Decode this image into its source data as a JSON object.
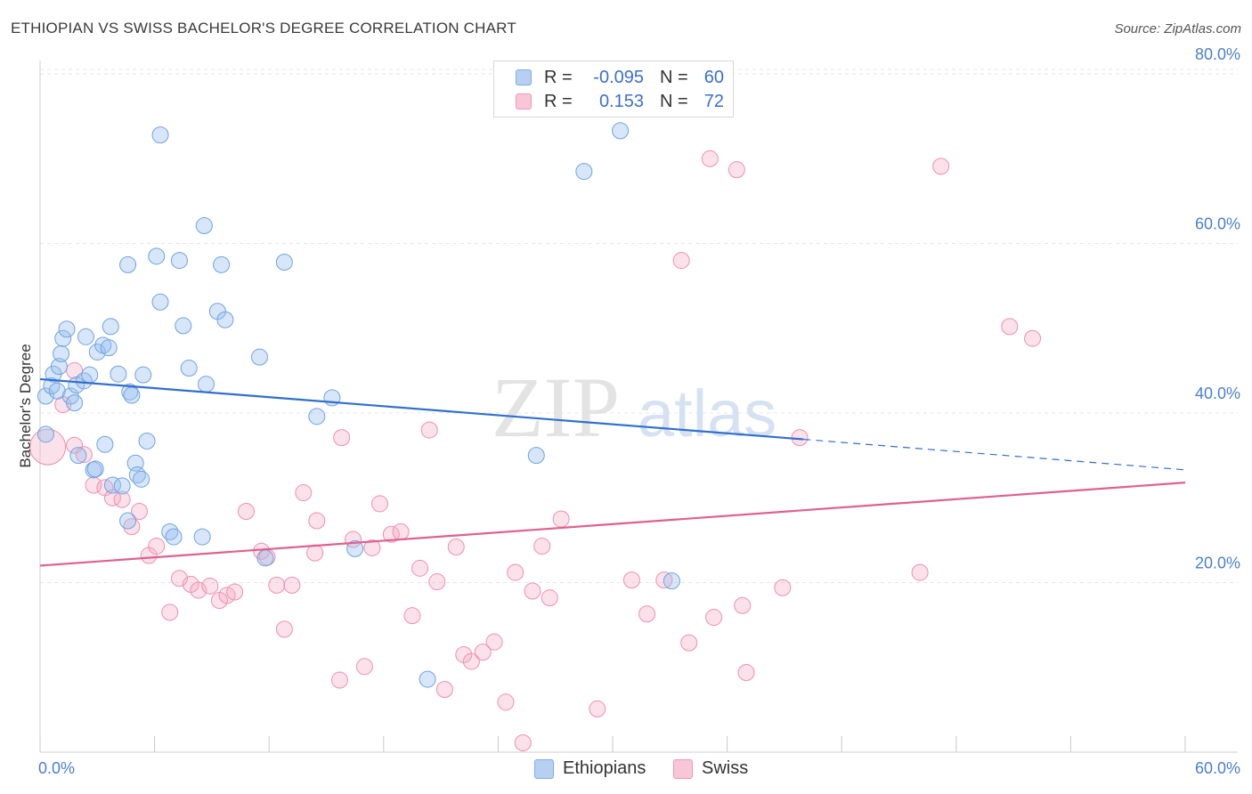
{
  "header": {
    "title": "ETHIOPIAN VS SWISS BACHELOR'S DEGREE CORRELATION CHART",
    "source": "Source: ZipAtlas.com"
  },
  "legend_top": {
    "rows": [
      {
        "r_label": "R =",
        "r_value": "-0.095",
        "n_label": "N =",
        "n_value": "60"
      },
      {
        "r_label": "R =",
        "r_value": "0.153",
        "n_label": "N =",
        "n_value": "72"
      }
    ]
  },
  "legend_bottom": {
    "items": [
      {
        "label": "Ethiopians"
      },
      {
        "label": "Swiss"
      }
    ]
  },
  "chart_data": {
    "type": "scatter",
    "title": "ETHIOPIAN VS SWISS BACHELOR'S DEGREE CORRELATION CHART",
    "xlabel": "",
    "ylabel": "Bachelor's Degree",
    "xlim": [
      0,
      60
    ],
    "ylim": [
      0,
      82
    ],
    "x_tick_labels": [
      "0.0%",
      "60.0%"
    ],
    "y_ticks": [
      20,
      40,
      60,
      80
    ],
    "y_tick_labels": [
      "20.0%",
      "40.0%",
      "60.0%",
      "80.0%"
    ],
    "grid": true,
    "watermark": "ZIPatlas",
    "colors": {
      "ethiopians": "#6fa3e0",
      "swiss": "#ef8fb0",
      "eth_line": "#2f6fd0",
      "swiss_line": "#e0608c"
    },
    "series": [
      {
        "name": "Ethiopians",
        "r": -0.095,
        "n": 60,
        "trend": {
          "x0": 0,
          "y0": 44.0,
          "x1": 40,
          "y1": 36.9,
          "dash_to_x": 60,
          "dash_to_y": 33.3
        },
        "points": [
          [
            0.3,
            42.0
          ],
          [
            0.3,
            37.5
          ],
          [
            0.6,
            43.2
          ],
          [
            0.7,
            44.6
          ],
          [
            0.9,
            42.6
          ],
          [
            1.0,
            45.5
          ],
          [
            1.1,
            47.0
          ],
          [
            1.2,
            48.8
          ],
          [
            1.4,
            49.9
          ],
          [
            1.6,
            42.0
          ],
          [
            1.8,
            41.2
          ],
          [
            1.9,
            43.3
          ],
          [
            2.0,
            35.0
          ],
          [
            2.3,
            43.8
          ],
          [
            2.4,
            49.0
          ],
          [
            2.6,
            44.5
          ],
          [
            2.8,
            33.3
          ],
          [
            2.9,
            33.4
          ],
          [
            3.0,
            47.2
          ],
          [
            3.3,
            48.0
          ],
          [
            3.4,
            36.3
          ],
          [
            3.6,
            47.7
          ],
          [
            3.7,
            50.2
          ],
          [
            3.8,
            31.5
          ],
          [
            4.1,
            44.6
          ],
          [
            4.3,
            31.4
          ],
          [
            4.6,
            27.3
          ],
          [
            4.7,
            42.5
          ],
          [
            4.8,
            42.1
          ],
          [
            5.0,
            34.1
          ],
          [
            5.1,
            32.7
          ],
          [
            5.3,
            32.2
          ],
          [
            5.4,
            44.5
          ],
          [
            5.6,
            36.7
          ],
          [
            4.6,
            57.5
          ],
          [
            6.3,
            72.8
          ],
          [
            6.3,
            53.1
          ],
          [
            6.1,
            58.5
          ],
          [
            6.8,
            26.0
          ],
          [
            7.0,
            25.4
          ],
          [
            7.3,
            58.0
          ],
          [
            7.5,
            50.3
          ],
          [
            7.8,
            45.3
          ],
          [
            8.5,
            25.4
          ],
          [
            8.6,
            62.1
          ],
          [
            8.7,
            43.4
          ],
          [
            9.3,
            52.0
          ],
          [
            9.5,
            57.5
          ],
          [
            9.7,
            51.0
          ],
          [
            11.5,
            46.6
          ],
          [
            11.8,
            22.9
          ],
          [
            12.8,
            57.8
          ],
          [
            14.5,
            39.6
          ],
          [
            15.3,
            41.8
          ],
          [
            16.5,
            24.0
          ],
          [
            20.3,
            8.6
          ],
          [
            30.4,
            73.3
          ],
          [
            33.1,
            20.2
          ],
          [
            28.5,
            68.5
          ],
          [
            26.0,
            35.0
          ]
        ]
      },
      {
        "name": "Swiss",
        "r": 0.153,
        "n": 72,
        "trend": {
          "x0": 0,
          "y0": 22.0,
          "x1": 60,
          "y1": 31.8
        },
        "points": [
          [
            0.4,
            36.0
          ],
          [
            1.2,
            41.0
          ],
          [
            1.8,
            36.2
          ],
          [
            2.3,
            35.1
          ],
          [
            2.8,
            31.5
          ],
          [
            3.4,
            31.2
          ],
          [
            3.8,
            30.0
          ],
          [
            4.3,
            29.8
          ],
          [
            4.8,
            26.6
          ],
          [
            5.2,
            28.4
          ],
          [
            5.7,
            23.2
          ],
          [
            6.1,
            24.3
          ],
          [
            6.8,
            16.5
          ],
          [
            7.3,
            20.5
          ],
          [
            7.9,
            19.8
          ],
          [
            8.3,
            19.1
          ],
          [
            8.9,
            19.6
          ],
          [
            9.4,
            17.9
          ],
          [
            9.8,
            18.5
          ],
          [
            10.2,
            18.9
          ],
          [
            10.8,
            28.4
          ],
          [
            11.6,
            23.7
          ],
          [
            11.9,
            23.0
          ],
          [
            12.4,
            19.7
          ],
          [
            12.8,
            14.5
          ],
          [
            13.2,
            19.7
          ],
          [
            13.8,
            30.6
          ],
          [
            14.4,
            23.5
          ],
          [
            14.5,
            27.3
          ],
          [
            15.7,
            8.5
          ],
          [
            15.8,
            37.1
          ],
          [
            16.4,
            25.1
          ],
          [
            17.0,
            10.1
          ],
          [
            17.4,
            24.1
          ],
          [
            17.8,
            29.3
          ],
          [
            18.4,
            25.7
          ],
          [
            18.9,
            26.0
          ],
          [
            19.5,
            16.1
          ],
          [
            19.9,
            21.7
          ],
          [
            20.4,
            38.0
          ],
          [
            20.8,
            20.1
          ],
          [
            21.2,
            7.4
          ],
          [
            21.8,
            24.2
          ],
          [
            22.2,
            11.5
          ],
          [
            22.6,
            10.7
          ],
          [
            23.2,
            11.8
          ],
          [
            23.8,
            13.0
          ],
          [
            24.4,
            5.9
          ],
          [
            24.9,
            21.2
          ],
          [
            25.3,
            1.1
          ],
          [
            25.8,
            19.0
          ],
          [
            26.3,
            24.3
          ],
          [
            26.7,
            18.2
          ],
          [
            27.3,
            27.5
          ],
          [
            29.2,
            5.1
          ],
          [
            31.0,
            20.3
          ],
          [
            31.8,
            16.3
          ],
          [
            32.7,
            20.3
          ],
          [
            33.6,
            58.0
          ],
          [
            34.0,
            12.9
          ],
          [
            35.1,
            70.0
          ],
          [
            35.3,
            15.9
          ],
          [
            36.5,
            68.7
          ],
          [
            36.8,
            17.3
          ],
          [
            37.0,
            9.4
          ],
          [
            38.9,
            19.4
          ],
          [
            39.8,
            37.1
          ],
          [
            46.1,
            21.2
          ],
          [
            47.2,
            69.1
          ],
          [
            50.8,
            50.2
          ],
          [
            52.0,
            48.8
          ],
          [
            1.8,
            45.0
          ]
        ]
      }
    ]
  }
}
